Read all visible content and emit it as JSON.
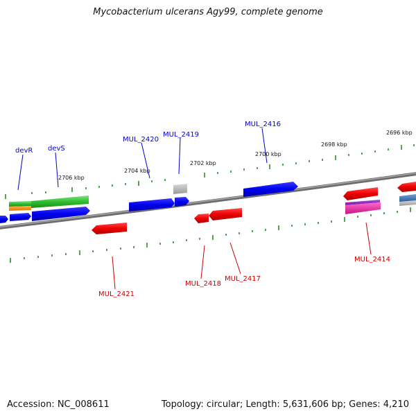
{
  "title": "Mycobacterium ulcerans Agy99, complete genome",
  "footer": {
    "accession": "Accession: NC_008611",
    "summary": "Topology: circular; Length: 5,631,606 bp; Genes: 4,210"
  },
  "scale_labels": [
    "2706 kbp",
    "2704 kbp",
    "2702 kbp",
    "2700 kbp",
    "2698 kbp",
    "2696 kbp"
  ],
  "gene_labels": {
    "devR": "devR",
    "devS": "devS",
    "MUL_2420": "MUL_2420",
    "MUL_2419": "MUL_2419",
    "MUL_2416": "MUL_2416",
    "MUL_2421": "MUL_2421",
    "MUL_2418": "MUL_2418",
    "MUL_2417": "MUL_2417",
    "MUL_2414": "MUL_2414"
  },
  "colors": {
    "forward": "#0000ee",
    "reverse": "#ee0000",
    "tick": "#2e8b2e",
    "backbone": "#777777"
  }
}
